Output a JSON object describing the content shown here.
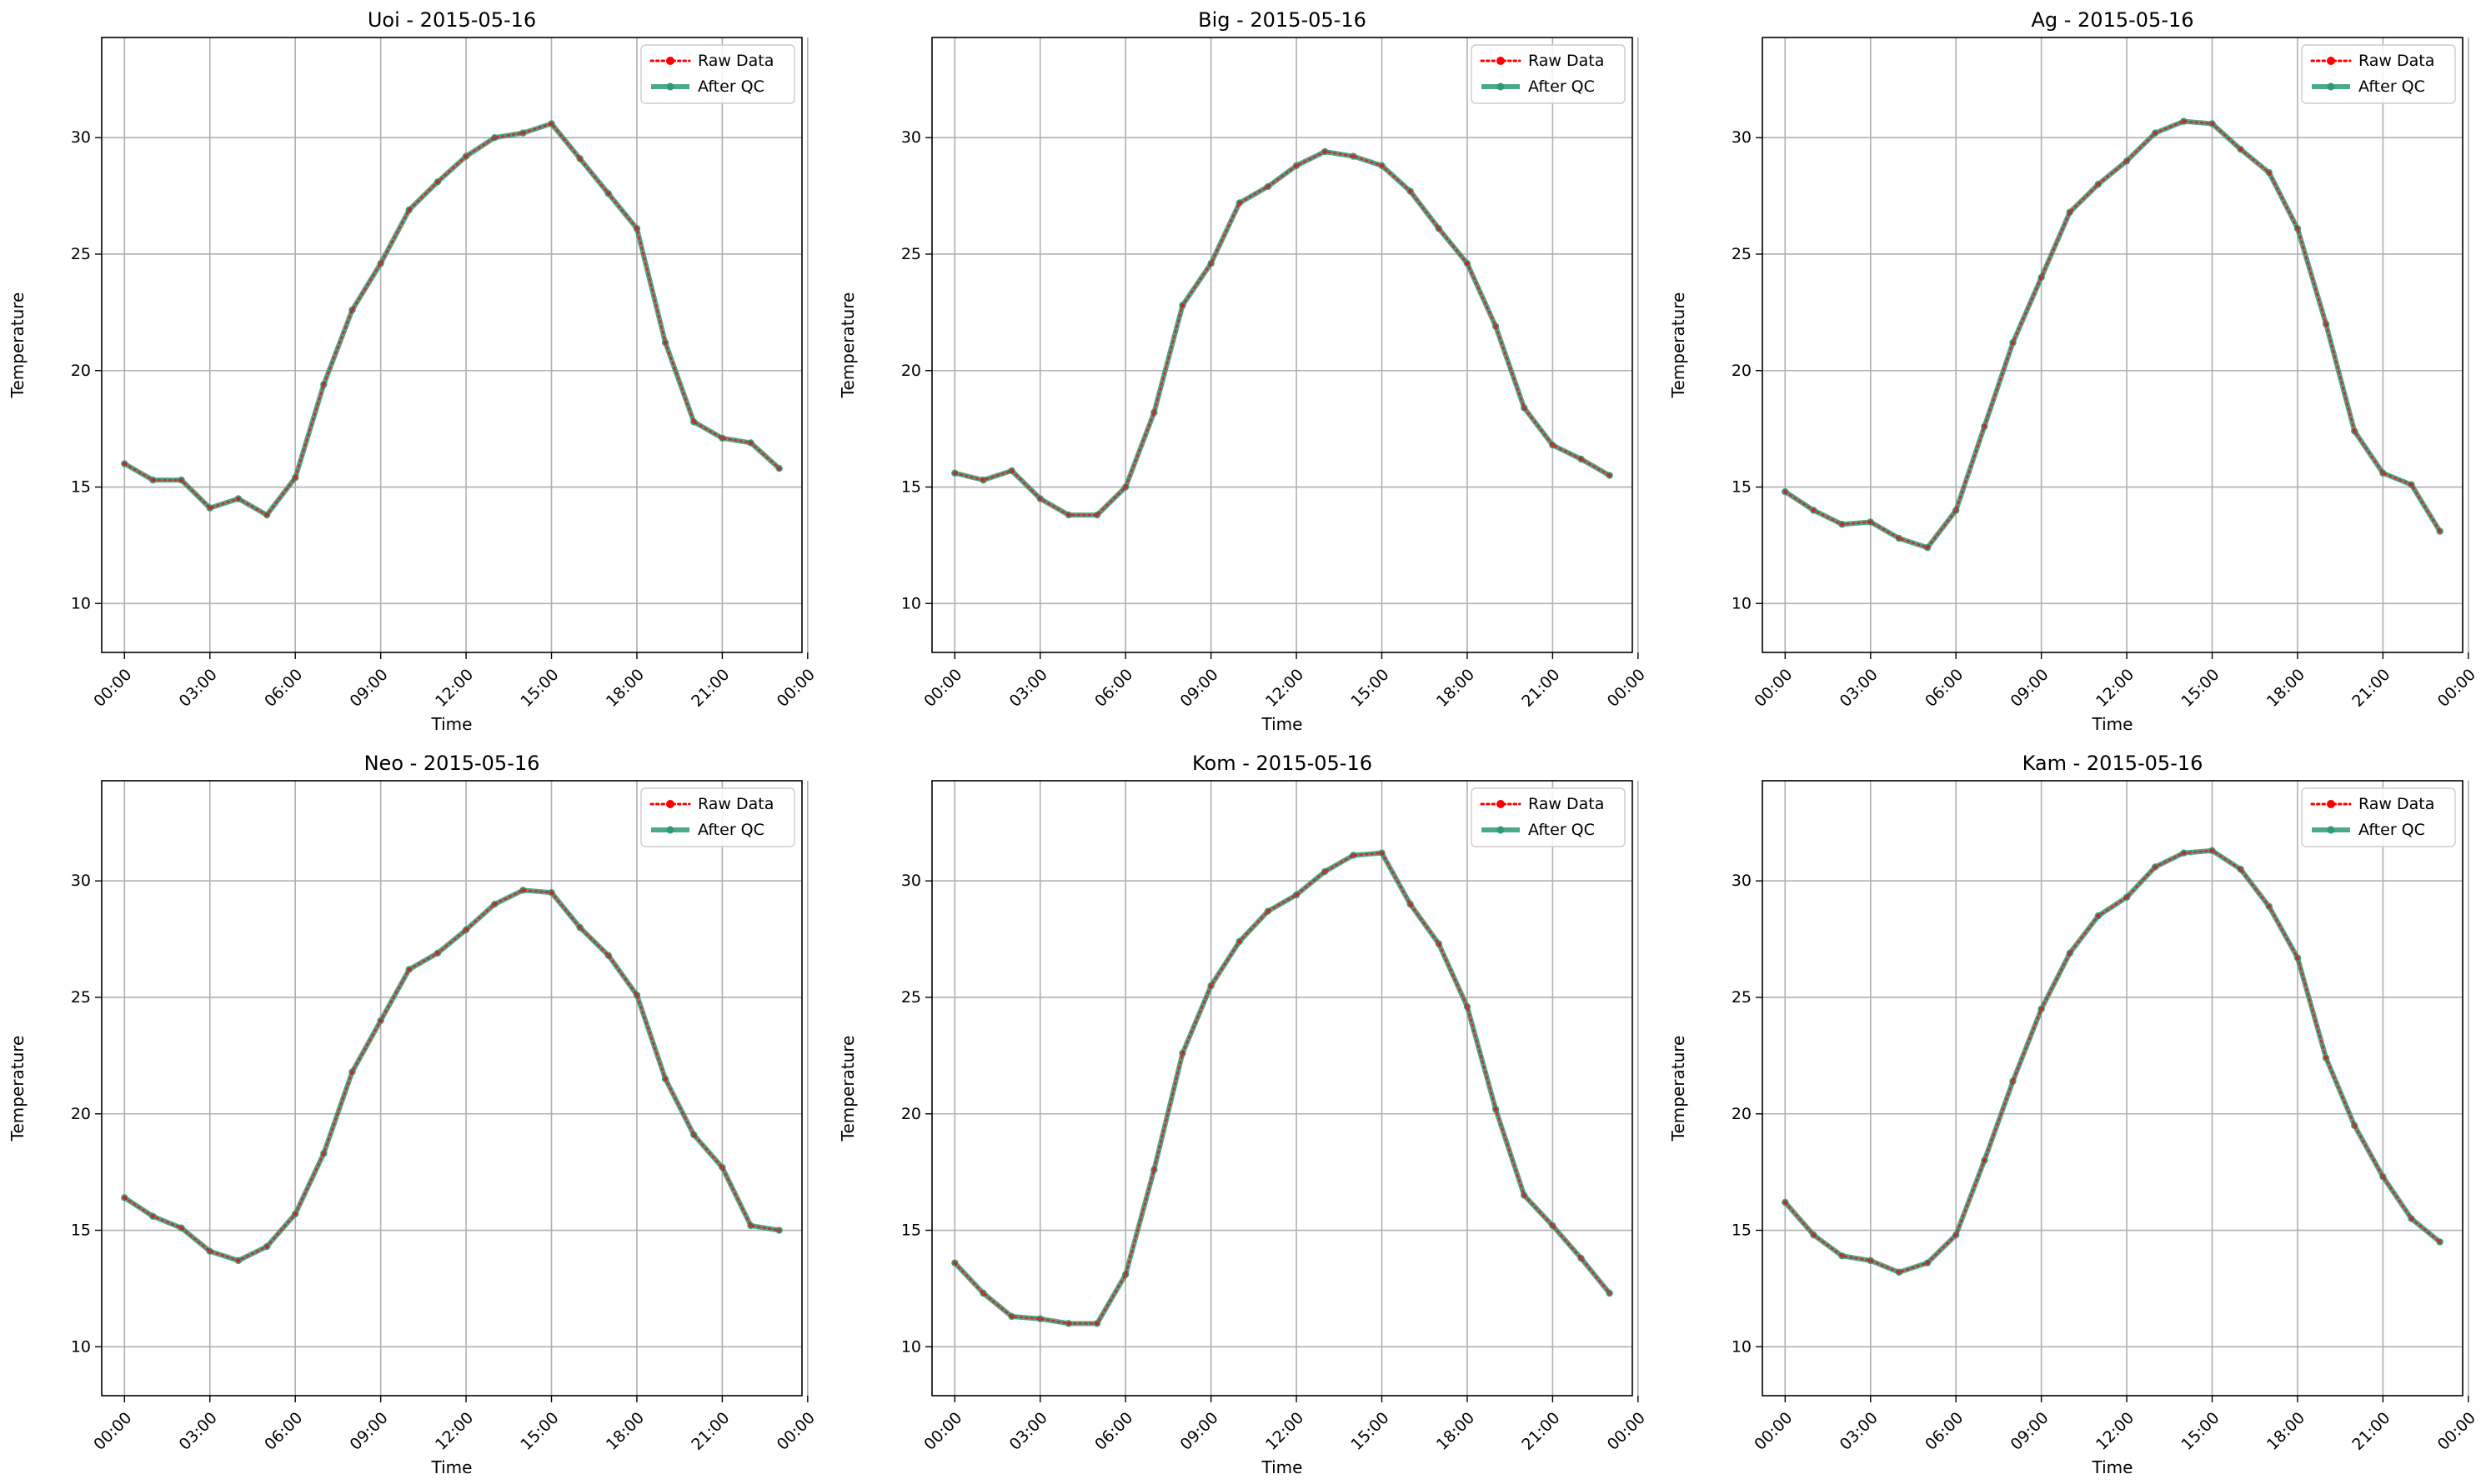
{
  "chart_data": [
    {
      "type": "line",
      "title": "Uoi - 2015-05-16",
      "xlabel": "Time",
      "ylabel": "Temperature",
      "ylim": [
        7.9,
        34.3
      ],
      "yticks": [
        10,
        15,
        20,
        25,
        30
      ],
      "xlim": [
        -0.8,
        23.8
      ],
      "xticks": [
        0,
        3,
        6,
        9,
        12,
        15,
        18,
        21,
        24
      ],
      "xtick_labels": [
        "00:00",
        "03:00",
        "06:00",
        "09:00",
        "12:00",
        "15:00",
        "18:00",
        "21:00",
        "00:00"
      ],
      "grid": true,
      "legend_position": "top-right",
      "x": [
        0,
        1,
        2,
        3,
        4,
        5,
        6,
        7,
        8,
        9,
        10,
        11,
        12,
        13,
        14,
        15,
        16,
        17,
        18,
        19,
        20,
        21,
        22,
        23
      ],
      "series": [
        {
          "name": "Raw Data",
          "color": "#ff0000",
          "style": "dotted",
          "values": [
            16.0,
            15.3,
            15.3,
            14.1,
            14.5,
            13.8,
            15.4,
            19.4,
            22.6,
            24.6,
            26.9,
            28.1,
            29.2,
            30.0,
            30.2,
            30.6,
            29.1,
            27.6,
            26.1,
            21.2,
            17.8,
            17.1,
            16.9,
            15.8
          ]
        },
        {
          "name": "After QC",
          "color": "#2e9a7a",
          "style": "solid",
          "values": [
            16.0,
            15.3,
            15.3,
            14.1,
            14.5,
            13.8,
            15.4,
            19.4,
            22.6,
            24.6,
            26.9,
            28.1,
            29.2,
            30.0,
            30.2,
            30.6,
            29.1,
            27.6,
            26.1,
            21.2,
            17.8,
            17.1,
            16.9,
            15.8
          ]
        }
      ]
    },
    {
      "type": "line",
      "title": "Big - 2015-05-16",
      "xlabel": "Time",
      "ylabel": "Temperature",
      "ylim": [
        7.9,
        34.3
      ],
      "yticks": [
        10,
        15,
        20,
        25,
        30
      ],
      "xlim": [
        -0.8,
        23.8
      ],
      "xticks": [
        0,
        3,
        6,
        9,
        12,
        15,
        18,
        21,
        24
      ],
      "xtick_labels": [
        "00:00",
        "03:00",
        "06:00",
        "09:00",
        "12:00",
        "15:00",
        "18:00",
        "21:00",
        "00:00"
      ],
      "grid": true,
      "legend_position": "top-right",
      "x": [
        0,
        1,
        2,
        3,
        4,
        5,
        6,
        7,
        8,
        9,
        10,
        11,
        12,
        13,
        14,
        15,
        16,
        17,
        18,
        19,
        20,
        21,
        22,
        23
      ],
      "series": [
        {
          "name": "Raw Data",
          "color": "#ff0000",
          "style": "dotted",
          "values": [
            15.6,
            15.3,
            15.7,
            14.5,
            13.8,
            13.8,
            15.0,
            18.2,
            22.8,
            24.6,
            27.2,
            27.9,
            28.8,
            29.4,
            29.2,
            28.8,
            27.7,
            26.1,
            24.6,
            21.9,
            18.4,
            16.8,
            16.2,
            15.5
          ]
        },
        {
          "name": "After QC",
          "color": "#2e9a7a",
          "style": "solid",
          "values": [
            15.6,
            15.3,
            15.7,
            14.5,
            13.8,
            13.8,
            15.0,
            18.2,
            22.8,
            24.6,
            27.2,
            27.9,
            28.8,
            29.4,
            29.2,
            28.8,
            27.7,
            26.1,
            24.6,
            21.9,
            18.4,
            16.8,
            16.2,
            15.5
          ]
        }
      ]
    },
    {
      "type": "line",
      "title": "Ag - 2015-05-16",
      "xlabel": "Time",
      "ylabel": "Temperature",
      "ylim": [
        7.9,
        34.3
      ],
      "yticks": [
        10,
        15,
        20,
        25,
        30
      ],
      "xlim": [
        -0.8,
        23.8
      ],
      "xticks": [
        0,
        3,
        6,
        9,
        12,
        15,
        18,
        21,
        24
      ],
      "xtick_labels": [
        "00:00",
        "03:00",
        "06:00",
        "09:00",
        "12:00",
        "15:00",
        "18:00",
        "21:00",
        "00:00"
      ],
      "grid": true,
      "legend_position": "top-right",
      "x": [
        0,
        1,
        2,
        3,
        4,
        5,
        6,
        7,
        8,
        9,
        10,
        11,
        12,
        13,
        14,
        15,
        16,
        17,
        18,
        19,
        20,
        21,
        22,
        23
      ],
      "series": [
        {
          "name": "Raw Data",
          "color": "#ff0000",
          "style": "dotted",
          "values": [
            14.8,
            14.0,
            13.4,
            13.5,
            12.8,
            12.4,
            14.0,
            17.6,
            21.2,
            24.0,
            26.8,
            28.0,
            29.0,
            30.2,
            30.7,
            30.6,
            29.5,
            28.5,
            26.1,
            22.0,
            17.4,
            15.6,
            15.1,
            13.1
          ]
        },
        {
          "name": "After QC",
          "color": "#2e9a7a",
          "style": "solid",
          "values": [
            14.8,
            14.0,
            13.4,
            13.5,
            12.8,
            12.4,
            14.0,
            17.6,
            21.2,
            24.0,
            26.8,
            28.0,
            29.0,
            30.2,
            30.7,
            30.6,
            29.5,
            28.5,
            26.1,
            22.0,
            17.4,
            15.6,
            15.1,
            13.1
          ]
        }
      ]
    },
    {
      "type": "line",
      "title": "Neo - 2015-05-16",
      "xlabel": "Time",
      "ylabel": "Temperature",
      "ylim": [
        7.9,
        34.3
      ],
      "yticks": [
        10,
        15,
        20,
        25,
        30
      ],
      "xlim": [
        -0.8,
        23.8
      ],
      "xticks": [
        0,
        3,
        6,
        9,
        12,
        15,
        18,
        21,
        24
      ],
      "xtick_labels": [
        "00:00",
        "03:00",
        "06:00",
        "09:00",
        "12:00",
        "15:00",
        "18:00",
        "21:00",
        "00:00"
      ],
      "grid": true,
      "legend_position": "top-right",
      "x": [
        0,
        1,
        2,
        3,
        4,
        5,
        6,
        7,
        8,
        9,
        10,
        11,
        12,
        13,
        14,
        15,
        16,
        17,
        18,
        19,
        20,
        21,
        22,
        23
      ],
      "series": [
        {
          "name": "Raw Data",
          "color": "#ff0000",
          "style": "dotted",
          "values": [
            16.4,
            15.6,
            15.1,
            14.1,
            13.7,
            14.3,
            15.7,
            18.3,
            21.8,
            24.0,
            26.2,
            26.9,
            27.9,
            29.0,
            29.6,
            29.5,
            28.0,
            26.8,
            25.1,
            21.5,
            19.1,
            17.7,
            15.2,
            15.0
          ]
        },
        {
          "name": "After QC",
          "color": "#2e9a7a",
          "style": "solid",
          "values": [
            16.4,
            15.6,
            15.1,
            14.1,
            13.7,
            14.3,
            15.7,
            18.3,
            21.8,
            24.0,
            26.2,
            26.9,
            27.9,
            29.0,
            29.6,
            29.5,
            28.0,
            26.8,
            25.1,
            21.5,
            19.1,
            17.7,
            15.2,
            15.0
          ]
        }
      ]
    },
    {
      "type": "line",
      "title": "Kom - 2015-05-16",
      "xlabel": "Time",
      "ylabel": "Temperature",
      "ylim": [
        7.9,
        34.3
      ],
      "yticks": [
        10,
        15,
        20,
        25,
        30
      ],
      "xlim": [
        -0.8,
        23.8
      ],
      "xticks": [
        0,
        3,
        6,
        9,
        12,
        15,
        18,
        21,
        24
      ],
      "xtick_labels": [
        "00:00",
        "03:00",
        "06:00",
        "09:00",
        "12:00",
        "15:00",
        "18:00",
        "21:00",
        "00:00"
      ],
      "grid": true,
      "legend_position": "top-right",
      "x": [
        0,
        1,
        2,
        3,
        4,
        5,
        6,
        7,
        8,
        9,
        10,
        11,
        12,
        13,
        14,
        15,
        16,
        17,
        18,
        19,
        20,
        21,
        22,
        23
      ],
      "series": [
        {
          "name": "Raw Data",
          "color": "#ff0000",
          "style": "dotted",
          "values": [
            13.6,
            12.3,
            11.3,
            11.2,
            11.0,
            11.0,
            13.1,
            17.6,
            22.6,
            25.5,
            27.4,
            28.7,
            29.4,
            30.4,
            31.1,
            31.2,
            29.0,
            27.3,
            24.6,
            20.2,
            16.5,
            15.2,
            13.8,
            12.3
          ]
        },
        {
          "name": "After QC",
          "color": "#2e9a7a",
          "style": "solid",
          "values": [
            13.6,
            12.3,
            11.3,
            11.2,
            11.0,
            11.0,
            13.1,
            17.6,
            22.6,
            25.5,
            27.4,
            28.7,
            29.4,
            30.4,
            31.1,
            31.2,
            29.0,
            27.3,
            24.6,
            20.2,
            16.5,
            15.2,
            13.8,
            12.3
          ]
        }
      ]
    },
    {
      "type": "line",
      "title": "Kam - 2015-05-16",
      "xlabel": "Time",
      "ylabel": "Temperature",
      "ylim": [
        7.9,
        34.3
      ],
      "yticks": [
        10,
        15,
        20,
        25,
        30
      ],
      "xlim": [
        -0.8,
        23.8
      ],
      "xticks": [
        0,
        3,
        6,
        9,
        12,
        15,
        18,
        21,
        24
      ],
      "xtick_labels": [
        "00:00",
        "03:00",
        "06:00",
        "09:00",
        "12:00",
        "15:00",
        "18:00",
        "21:00",
        "00:00"
      ],
      "grid": true,
      "legend_position": "top-right",
      "x": [
        0,
        1,
        2,
        3,
        4,
        5,
        6,
        7,
        8,
        9,
        10,
        11,
        12,
        13,
        14,
        15,
        16,
        17,
        18,
        19,
        20,
        21,
        22,
        23
      ],
      "series": [
        {
          "name": "Raw Data",
          "color": "#ff0000",
          "style": "dotted",
          "values": [
            16.2,
            14.8,
            13.9,
            13.7,
            13.2,
            13.6,
            14.8,
            18.0,
            21.4,
            24.5,
            26.9,
            28.5,
            29.3,
            30.6,
            31.2,
            31.3,
            30.5,
            28.9,
            26.7,
            22.4,
            19.5,
            17.3,
            15.5,
            14.5
          ]
        },
        {
          "name": "After QC",
          "color": "#2e9a7a",
          "style": "solid",
          "values": [
            16.2,
            14.8,
            13.9,
            13.7,
            13.2,
            13.6,
            14.8,
            18.0,
            21.4,
            24.5,
            26.9,
            28.5,
            29.3,
            30.6,
            31.2,
            31.3,
            30.5,
            28.9,
            26.7,
            22.4,
            19.5,
            17.3,
            15.5,
            14.5
          ]
        }
      ]
    }
  ]
}
